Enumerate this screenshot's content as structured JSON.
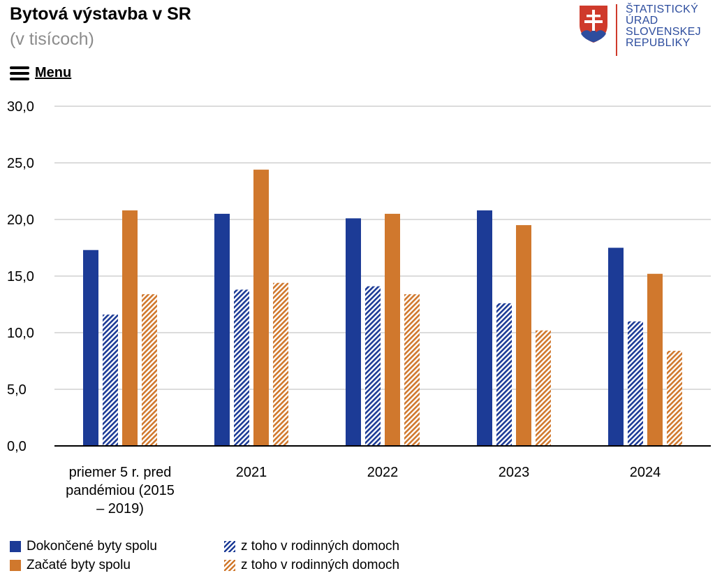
{
  "header": {
    "title": "Bytová výstavba v SR",
    "subtitle": "(v tisícoch)",
    "menu_label": "Menu"
  },
  "logo": {
    "lines": [
      "ŠTATISTICKÝ",
      "ÚRAD",
      "SLOVENSKEJ",
      "REPUBLIKY"
    ],
    "text_color": "#2d4d9e",
    "accent_color": "#cf3a2b"
  },
  "colors": {
    "blue": "#1c3b96",
    "orange": "#d0782d"
  },
  "chart_data": {
    "type": "bar",
    "title": "Bytová výstavba v SR",
    "subtitle": "(v tisícoch)",
    "xlabel": "",
    "ylabel": "",
    "ylim": [
      0,
      30
    ],
    "yticks": [
      "0,0",
      "5,0",
      "10,0",
      "15,0",
      "20,0",
      "25,0",
      "30,0"
    ],
    "grid": true,
    "legend_position": "bottom",
    "categories": [
      [
        "priemer 5 r. pred",
        "pandémiou (2015",
        "– 2019)"
      ],
      [
        "2021"
      ],
      [
        "2022"
      ],
      [
        "2023"
      ],
      [
        "2024"
      ]
    ],
    "series": [
      {
        "name": "Dokončené byty spolu",
        "color": "#1c3b96",
        "pattern": "solid",
        "values": [
          17.3,
          20.5,
          20.1,
          20.8,
          17.5
        ]
      },
      {
        "name": "z toho v rodinných domoch",
        "color": "#1c3b96",
        "pattern": "hatched",
        "values": [
          11.6,
          13.8,
          14.1,
          12.6,
          11.0
        ]
      },
      {
        "name": "Začaté byty spolu",
        "color": "#d0782d",
        "pattern": "solid",
        "values": [
          20.8,
          24.4,
          20.5,
          19.5,
          15.2
        ]
      },
      {
        "name": "z toho v rodinných domoch",
        "color": "#d0782d",
        "pattern": "hatched",
        "values": [
          13.4,
          14.4,
          13.4,
          10.2,
          8.4
        ]
      }
    ]
  }
}
